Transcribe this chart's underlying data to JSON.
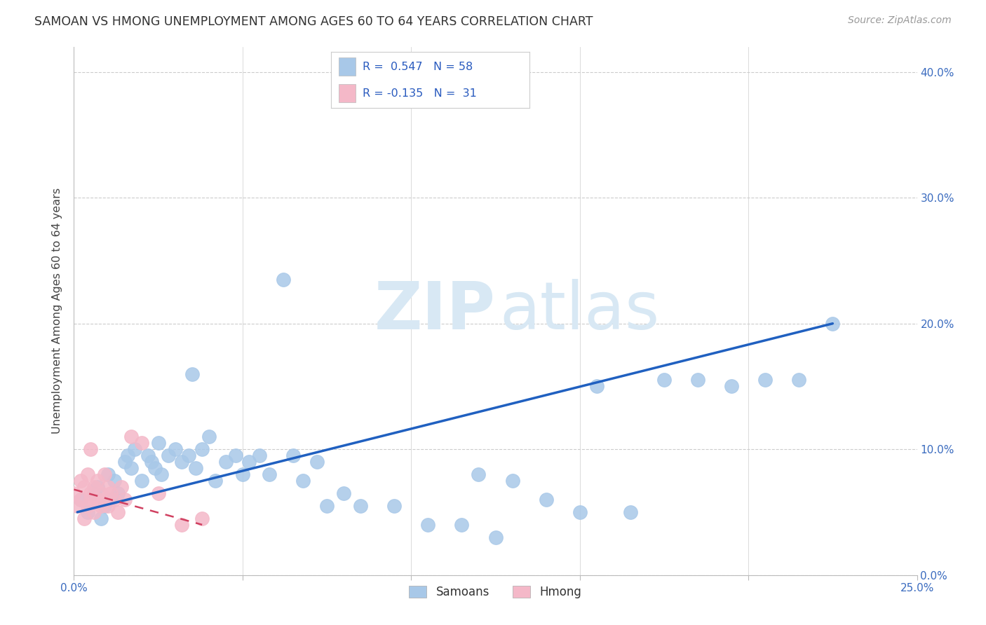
{
  "title": "SAMOAN VS HMONG UNEMPLOYMENT AMONG AGES 60 TO 64 YEARS CORRELATION CHART",
  "source": "Source: ZipAtlas.com",
  "ylabel": "Unemployment Among Ages 60 to 64 years",
  "xlim": [
    0.0,
    0.25
  ],
  "ylim": [
    0.0,
    0.42
  ],
  "xticks": [
    0.0,
    0.25
  ],
  "yticks": [
    0.0,
    0.1,
    0.2,
    0.3,
    0.4
  ],
  "samoans_R": 0.547,
  "samoans_N": 58,
  "hmong_R": -0.135,
  "hmong_N": 31,
  "samoans_color": "#a8c8e8",
  "hmong_color": "#f4b8c8",
  "samoans_line_color": "#2060c0",
  "hmong_line_color": "#d04060",
  "watermark_color": "#d8e8f4",
  "background_color": "#ffffff",
  "samoans_x": [
    0.002,
    0.004,
    0.006,
    0.007,
    0.008,
    0.009,
    0.01,
    0.011,
    0.012,
    0.013,
    0.015,
    0.016,
    0.017,
    0.018,
    0.02,
    0.022,
    0.023,
    0.024,
    0.025,
    0.026,
    0.028,
    0.03,
    0.032,
    0.034,
    0.035,
    0.036,
    0.038,
    0.04,
    0.042,
    0.045,
    0.048,
    0.05,
    0.052,
    0.055,
    0.058,
    0.062,
    0.065,
    0.068,
    0.072,
    0.075,
    0.08,
    0.085,
    0.095,
    0.105,
    0.115,
    0.12,
    0.125,
    0.13,
    0.14,
    0.15,
    0.155,
    0.165,
    0.175,
    0.185,
    0.195,
    0.205,
    0.215,
    0.225
  ],
  "samoans_y": [
    0.06,
    0.05,
    0.065,
    0.07,
    0.045,
    0.055,
    0.08,
    0.06,
    0.075,
    0.065,
    0.09,
    0.095,
    0.085,
    0.1,
    0.075,
    0.095,
    0.09,
    0.085,
    0.105,
    0.08,
    0.095,
    0.1,
    0.09,
    0.095,
    0.16,
    0.085,
    0.1,
    0.11,
    0.075,
    0.09,
    0.095,
    0.08,
    0.09,
    0.095,
    0.08,
    0.235,
    0.095,
    0.075,
    0.09,
    0.055,
    0.065,
    0.055,
    0.055,
    0.04,
    0.04,
    0.08,
    0.03,
    0.075,
    0.06,
    0.05,
    0.15,
    0.05,
    0.155,
    0.155,
    0.15,
    0.155,
    0.155,
    0.2
  ],
  "hmong_x": [
    0.0,
    0.001,
    0.002,
    0.002,
    0.003,
    0.003,
    0.004,
    0.004,
    0.005,
    0.005,
    0.005,
    0.006,
    0.006,
    0.007,
    0.007,
    0.008,
    0.008,
    0.009,
    0.009,
    0.01,
    0.01,
    0.011,
    0.012,
    0.013,
    0.014,
    0.015,
    0.017,
    0.02,
    0.025,
    0.032,
    0.038
  ],
  "hmong_y": [
    0.065,
    0.055,
    0.06,
    0.075,
    0.045,
    0.07,
    0.08,
    0.055,
    0.06,
    0.065,
    0.1,
    0.05,
    0.07,
    0.06,
    0.075,
    0.055,
    0.065,
    0.06,
    0.08,
    0.07,
    0.055,
    0.065,
    0.06,
    0.05,
    0.07,
    0.06,
    0.11,
    0.105,
    0.065,
    0.04,
    0.045
  ],
  "samoans_line_x": [
    0.001,
    0.225
  ],
  "samoans_line_y": [
    0.05,
    0.2
  ],
  "hmong_line_x": [
    0.0,
    0.038
  ],
  "hmong_line_y": [
    0.068,
    0.04
  ]
}
